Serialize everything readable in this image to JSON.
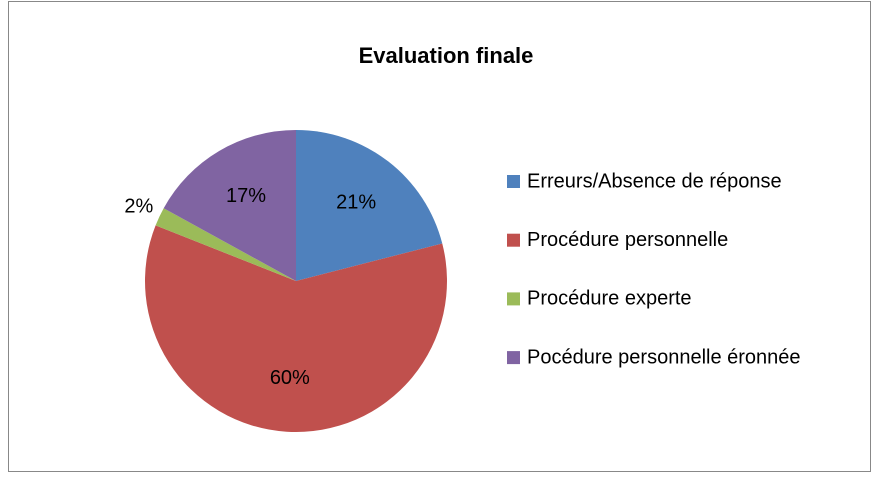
{
  "chart_data": {
    "type": "pie",
    "title": "Evaluation finale",
    "categories": [
      "Erreurs/Absence de réponse",
      "Procédure personnelle",
      "Procédure experte",
      "Pocédure personnelle éronnée"
    ],
    "values": [
      21,
      60,
      2,
      17
    ],
    "value_labels": [
      "21%",
      "60%",
      "2%",
      "17%"
    ],
    "colors": [
      "#4f81bd",
      "#c0504d",
      "#9bbb59",
      "#8064a2"
    ],
    "legend": "right"
  }
}
